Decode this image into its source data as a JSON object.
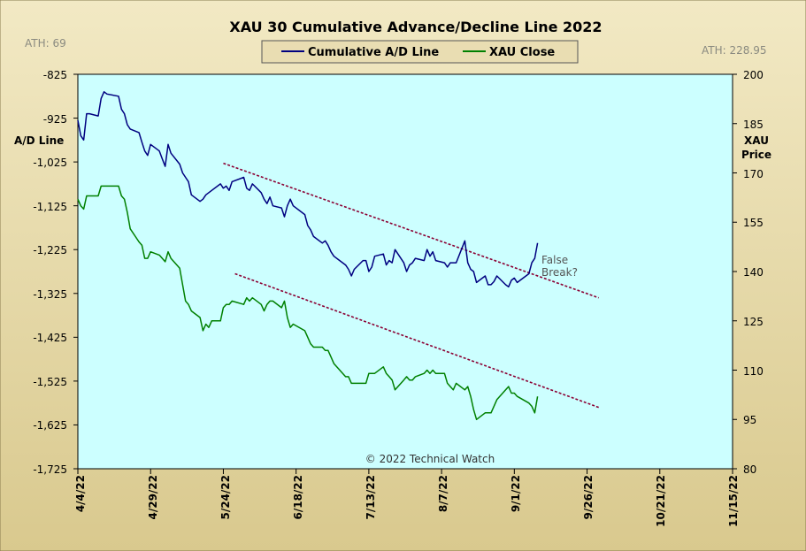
{
  "chart_data": {
    "type": "line",
    "title": "XAU 30 Cumulative Advance/Decline Line 2022",
    "ylabel": "A/D Line",
    "y2label_line1": "XAU",
    "y2label_line2": "Price",
    "ylim": [
      -1725,
      -825
    ],
    "y2lim": [
      80,
      200
    ],
    "yticks": [
      "-825",
      "-925",
      "-1,025",
      "-1,125",
      "-1,225",
      "-1,325",
      "-1,425",
      "-1,525",
      "-1,625",
      "-1,725"
    ],
    "y2ticks": [
      "200",
      "185",
      "170",
      "155",
      "140",
      "125",
      "110",
      "95",
      "80"
    ],
    "xticks": [
      "4/4/22",
      "4/29/22",
      "5/24/22",
      "6/18/22",
      "7/13/22",
      "8/7/22",
      "9/1/22",
      "9/26/22",
      "10/21/22",
      "11/15/22"
    ],
    "xlim": [
      "2022-04-04",
      "2022-11-15"
    ],
    "ath_left": "ATH: 69",
    "ath_right": "ATH: 228.95",
    "credit": "© 2022 Technical Watch",
    "annotation": [
      "False",
      "Break?"
    ],
    "colors": {
      "ad_line": "#000080",
      "xau_close": "#008000",
      "trend": "#8B0033",
      "plot_bg": "#CCFFFF",
      "frame_bg": "#E6D9A6"
    },
    "series": [
      {
        "name": "Cumulative A/D Line",
        "axis": "left",
        "x": [
          "2022-04-04",
          "2022-04-05",
          "2022-04-06",
          "2022-04-07",
          "2022-04-08",
          "2022-04-11",
          "2022-04-12",
          "2022-04-13",
          "2022-04-14",
          "2022-04-18",
          "2022-04-19",
          "2022-04-20",
          "2022-04-21",
          "2022-04-22",
          "2022-04-25",
          "2022-04-26",
          "2022-04-27",
          "2022-04-28",
          "2022-04-29",
          "2022-05-02",
          "2022-05-03",
          "2022-05-04",
          "2022-05-05",
          "2022-05-06",
          "2022-05-09",
          "2022-05-10",
          "2022-05-11",
          "2022-05-12",
          "2022-05-13",
          "2022-05-16",
          "2022-05-17",
          "2022-05-18",
          "2022-05-19",
          "2022-05-20",
          "2022-05-23",
          "2022-05-24",
          "2022-05-25",
          "2022-05-26",
          "2022-05-27",
          "2022-05-31",
          "2022-06-01",
          "2022-06-02",
          "2022-06-03",
          "2022-06-06",
          "2022-06-07",
          "2022-06-08",
          "2022-06-09",
          "2022-06-10",
          "2022-06-13",
          "2022-06-14",
          "2022-06-15",
          "2022-06-16",
          "2022-06-17",
          "2022-06-21",
          "2022-06-22",
          "2022-06-23",
          "2022-06-24",
          "2022-06-27",
          "2022-06-28",
          "2022-06-29",
          "2022-06-30",
          "2022-07-01",
          "2022-07-05",
          "2022-07-06",
          "2022-07-07",
          "2022-07-08",
          "2022-07-11",
          "2022-07-12",
          "2022-07-13",
          "2022-07-14",
          "2022-07-15",
          "2022-07-18",
          "2022-07-19",
          "2022-07-20",
          "2022-07-21",
          "2022-07-22",
          "2022-07-25",
          "2022-07-26",
          "2022-07-27",
          "2022-07-28",
          "2022-07-29",
          "2022-08-01",
          "2022-08-02",
          "2022-08-03",
          "2022-08-04",
          "2022-08-05",
          "2022-08-08",
          "2022-08-09",
          "2022-08-10",
          "2022-08-11",
          "2022-08-12",
          "2022-08-15",
          "2022-08-16",
          "2022-08-17",
          "2022-08-18",
          "2022-08-19",
          "2022-08-22",
          "2022-08-23",
          "2022-08-24",
          "2022-08-25",
          "2022-08-26",
          "2022-08-29",
          "2022-08-30",
          "2022-08-31",
          "2022-09-01",
          "2022-09-02",
          "2022-09-06",
          "2022-09-07",
          "2022-09-08",
          "2022-09-09"
        ],
        "values": [
          -930,
          -965,
          -975,
          -915,
          -915,
          -920,
          -880,
          -865,
          -870,
          -875,
          -905,
          -915,
          -940,
          -950,
          -958,
          -980,
          -1000,
          -1010,
          -985,
          -1000,
          -1018,
          -1035,
          -985,
          -1005,
          -1030,
          -1050,
          -1060,
          -1070,
          -1100,
          -1115,
          -1110,
          -1100,
          -1095,
          -1090,
          -1075,
          -1085,
          -1080,
          -1090,
          -1070,
          -1060,
          -1085,
          -1090,
          -1075,
          -1095,
          -1110,
          -1120,
          -1105,
          -1125,
          -1130,
          -1150,
          -1125,
          -1110,
          -1125,
          -1145,
          -1170,
          -1180,
          -1195,
          -1210,
          -1205,
          -1215,
          -1230,
          -1240,
          -1260,
          -1270,
          -1285,
          -1270,
          -1250,
          -1250,
          -1275,
          -1265,
          -1240,
          -1235,
          -1260,
          -1250,
          -1255,
          -1225,
          -1255,
          -1275,
          -1260,
          -1255,
          -1245,
          -1250,
          -1225,
          -1240,
          -1230,
          -1250,
          -1255,
          -1265,
          -1255,
          -1255,
          -1255,
          -1205,
          -1255,
          -1270,
          -1275,
          -1300,
          -1285,
          -1305,
          -1305,
          -1298,
          -1285,
          -1305,
          -1310,
          -1295,
          -1290,
          -1300,
          -1280,
          -1255,
          -1245,
          -1210
        ]
      },
      {
        "name": "XAU Close",
        "axis": "right",
        "x": [
          "2022-04-04",
          "2022-04-05",
          "2022-04-06",
          "2022-04-07",
          "2022-04-08",
          "2022-04-11",
          "2022-04-12",
          "2022-04-13",
          "2022-04-14",
          "2022-04-18",
          "2022-04-19",
          "2022-04-20",
          "2022-04-21",
          "2022-04-22",
          "2022-04-25",
          "2022-04-26",
          "2022-04-27",
          "2022-04-28",
          "2022-04-29",
          "2022-05-02",
          "2022-05-03",
          "2022-05-04",
          "2022-05-05",
          "2022-05-06",
          "2022-05-09",
          "2022-05-10",
          "2022-05-11",
          "2022-05-12",
          "2022-05-13",
          "2022-05-16",
          "2022-05-17",
          "2022-05-18",
          "2022-05-19",
          "2022-05-20",
          "2022-05-23",
          "2022-05-24",
          "2022-05-25",
          "2022-05-26",
          "2022-05-27",
          "2022-05-31",
          "2022-06-01",
          "2022-06-02",
          "2022-06-03",
          "2022-06-06",
          "2022-06-07",
          "2022-06-08",
          "2022-06-09",
          "2022-06-10",
          "2022-06-13",
          "2022-06-14",
          "2022-06-15",
          "2022-06-16",
          "2022-06-17",
          "2022-06-21",
          "2022-06-22",
          "2022-06-23",
          "2022-06-24",
          "2022-06-27",
          "2022-06-28",
          "2022-06-29",
          "2022-06-30",
          "2022-07-01",
          "2022-07-05",
          "2022-07-06",
          "2022-07-07",
          "2022-07-08",
          "2022-07-11",
          "2022-07-12",
          "2022-07-13",
          "2022-07-14",
          "2022-07-15",
          "2022-07-18",
          "2022-07-19",
          "2022-07-20",
          "2022-07-21",
          "2022-07-22",
          "2022-07-25",
          "2022-07-26",
          "2022-07-27",
          "2022-07-28",
          "2022-07-29",
          "2022-08-01",
          "2022-08-02",
          "2022-08-03",
          "2022-08-04",
          "2022-08-05",
          "2022-08-08",
          "2022-08-09",
          "2022-08-10",
          "2022-08-11",
          "2022-08-12",
          "2022-08-15",
          "2022-08-16",
          "2022-08-17",
          "2022-08-18",
          "2022-08-19",
          "2022-08-22",
          "2022-08-23",
          "2022-08-24",
          "2022-08-25",
          "2022-08-26",
          "2022-08-29",
          "2022-08-30",
          "2022-08-31",
          "2022-09-01",
          "2022-09-02",
          "2022-09-06",
          "2022-09-07",
          "2022-09-08",
          "2022-09-09"
        ],
        "values": [
          162,
          160,
          159,
          163,
          163,
          163,
          166,
          166,
          166,
          166,
          163,
          162,
          158,
          153,
          149,
          148,
          144,
          144,
          146,
          145,
          144,
          143,
          146,
          144,
          141,
          136,
          131,
          130,
          128,
          126,
          122,
          124,
          123,
          125,
          125,
          129,
          130,
          130,
          131,
          130,
          132,
          131,
          132,
          130,
          128,
          130,
          131,
          131,
          129,
          131,
          126,
          123,
          124,
          122,
          120,
          118,
          117,
          117,
          116,
          116,
          114,
          112,
          108,
          108,
          106,
          106,
          106,
          106,
          109,
          109,
          109,
          111,
          109,
          108,
          107,
          104,
          107,
          108,
          107,
          107,
          108,
          109,
          110,
          109,
          110,
          109,
          109,
          106,
          105,
          104,
          106,
          104,
          105,
          102,
          98,
          95,
          97,
          97,
          97,
          99,
          101,
          104,
          105,
          103,
          103,
          102,
          100,
          99,
          97,
          102
        ]
      }
    ],
    "trendlines": [
      {
        "axis": "left",
        "x": [
          "2022-05-24",
          "2022-09-30"
        ],
        "y": [
          -1028,
          -1335
        ]
      },
      {
        "axis": "left",
        "x": [
          "2022-05-28",
          "2022-09-30"
        ],
        "y": [
          -1280,
          -1585
        ]
      }
    ]
  }
}
